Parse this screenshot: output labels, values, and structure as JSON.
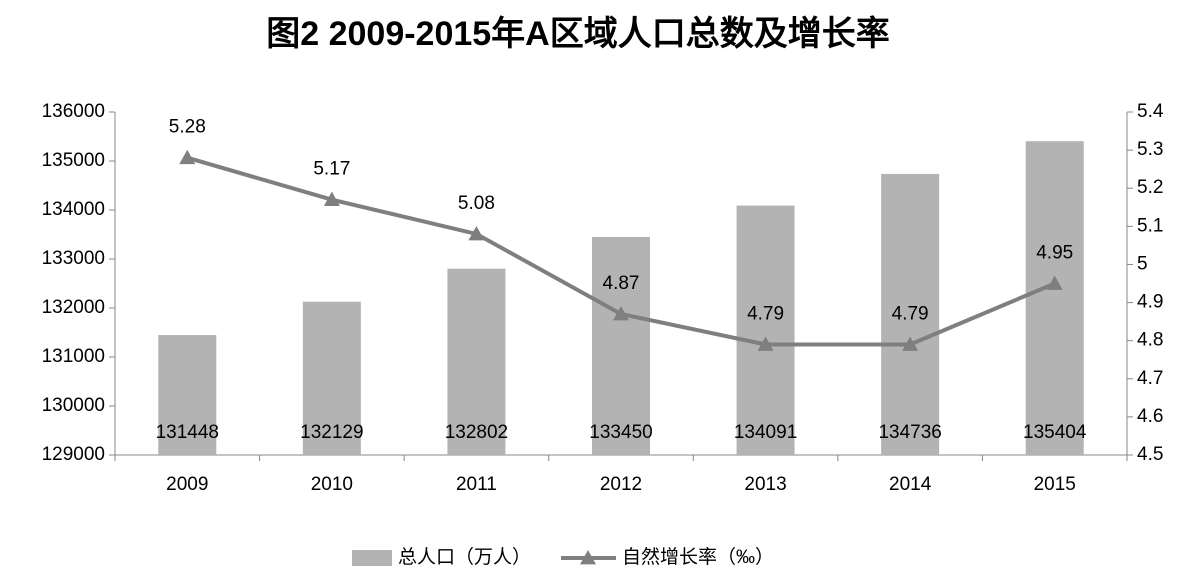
{
  "chart_data": {
    "type": "bar",
    "title": "图2  2009-2015年A区域人口总数及增长率",
    "categories": [
      "2009",
      "2010",
      "2011",
      "2012",
      "2013",
      "2014",
      "2015"
    ],
    "series": [
      {
        "name": "总人口（万人）",
        "type": "bar",
        "color": "#b3b3b3",
        "values": [
          131448,
          132129,
          132802,
          133450,
          134091,
          134736,
          135404
        ]
      },
      {
        "name": "自然增长率（‰）",
        "type": "line",
        "axis": "y2",
        "color": "#7f7f7f",
        "values": [
          5.28,
          5.17,
          5.08,
          4.87,
          4.79,
          4.79,
          4.95
        ]
      }
    ],
    "ylim": [
      129000,
      136000
    ],
    "yticks": [
      129000,
      130000,
      131000,
      132000,
      133000,
      134000,
      135000,
      136000
    ],
    "y2lim": [
      4.5,
      5.4
    ],
    "y2ticks": [
      4.5,
      4.6,
      4.7,
      4.8,
      4.9,
      5,
      5.1,
      5.2,
      5.3,
      5.4
    ],
    "grid": false,
    "legend": "bottom"
  }
}
